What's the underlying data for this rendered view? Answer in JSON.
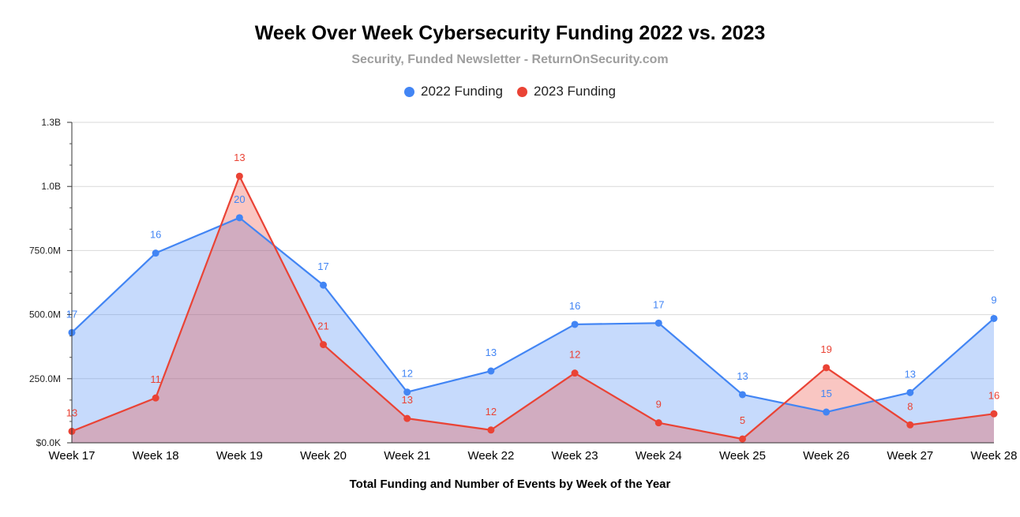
{
  "chart_data": {
    "type": "area",
    "title": "Week Over Week Cybersecurity Funding 2022 vs. 2023",
    "subtitle": "Security, Funded Newsletter - ReturnOnSecurity.com",
    "xlabel": "Total Funding and Number of Events by Week of the Year",
    "ylabel": "",
    "categories": [
      "Week 17",
      "Week 18",
      "Week 19",
      "Week 20",
      "Week 21",
      "Week 22",
      "Week 23",
      "Week 24",
      "Week 25",
      "Week 26",
      "Week 27",
      "Week 28"
    ],
    "ylim": [
      0,
      1250000000
    ],
    "yticks": [
      {
        "value": 0,
        "label": "$0.0K"
      },
      {
        "value": 250000000,
        "label": "250.0M"
      },
      {
        "value": 500000000,
        "label": "500.0M"
      },
      {
        "value": 750000000,
        "label": "750.0M"
      },
      {
        "value": 1000000000,
        "label": "1.0B"
      },
      {
        "value": 1250000000,
        "label": "1.3B"
      }
    ],
    "grid": true,
    "legend_position": "top-center",
    "series": [
      {
        "name": "2022 Funding",
        "color": "#4285f4",
        "values": [
          430000000,
          740000000,
          878000000,
          615000000,
          198000000,
          280000000,
          462000000,
          467000000,
          188000000,
          120000000,
          196000000,
          485000000
        ],
        "labels": [
          "17",
          "16",
          "20",
          "17",
          "12",
          "13",
          "16",
          "17",
          "13",
          "15",
          "13",
          "9"
        ]
      },
      {
        "name": "2023 Funding",
        "color": "#ea4335",
        "values": [
          45000000,
          175000000,
          1040000000,
          383000000,
          95000000,
          50000000,
          272000000,
          78000000,
          15000000,
          293000000,
          70000000,
          113000000
        ],
        "labels": [
          "13",
          "11",
          "13",
          "21",
          "13",
          "12",
          "12",
          "9",
          "5",
          "19",
          "8",
          "16"
        ]
      }
    ]
  }
}
